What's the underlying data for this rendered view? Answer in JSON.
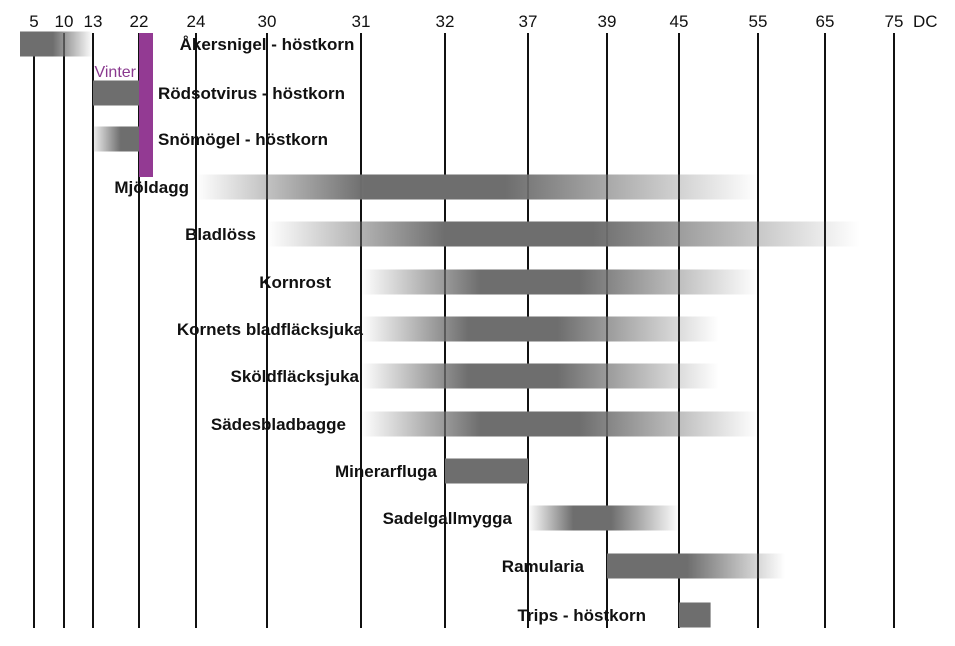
{
  "chart_data": {
    "type": "bar",
    "x_unit": "DC",
    "x_ticks": [
      "5",
      "10",
      "13",
      "22",
      "24",
      "30",
      "31",
      "32",
      "37",
      "39",
      "45",
      "55",
      "65",
      "75"
    ],
    "winter": {
      "label": "Vinter",
      "color": "#933a93"
    },
    "bar_color": "#6e6e6e",
    "series": [
      {
        "name": "Åkersnigel - höstkorn",
        "start": "0",
        "end": "13",
        "fade": "right"
      },
      {
        "name": "Rödsotvirus - höstkorn",
        "start": "13",
        "end": "22",
        "fade": "none"
      },
      {
        "name": "Snömögel - höstkorn",
        "start": "13",
        "end": "22",
        "fade": "left"
      },
      {
        "name": "Mjöldagg",
        "start": "24",
        "end": "55",
        "fade": "both"
      },
      {
        "name": "Bladlöss",
        "start": "30",
        "end": "70",
        "fade": "both"
      },
      {
        "name": "Kornrost",
        "start": "31",
        "end": "55",
        "fade": "both"
      },
      {
        "name": "Kornets bladfläcksjuka",
        "start": "31",
        "end": "50",
        "fade": "both"
      },
      {
        "name": "Sköldfläcksjuka",
        "start": "31",
        "end": "50",
        "fade": "both"
      },
      {
        "name": "Sädesbladbagge",
        "start": "31",
        "end": "55",
        "fade": "both"
      },
      {
        "name": "Minerarfluga",
        "start": "32",
        "end": "37",
        "fade": "none"
      },
      {
        "name": "Sadelgallmygga",
        "start": "37",
        "end": "45",
        "fade": "both"
      },
      {
        "name": "Ramularia",
        "start": "39",
        "end": "59",
        "fade": "right"
      },
      {
        "name": "Trips - höstkorn",
        "start": "45",
        "end": "49",
        "fade": "none"
      }
    ]
  }
}
